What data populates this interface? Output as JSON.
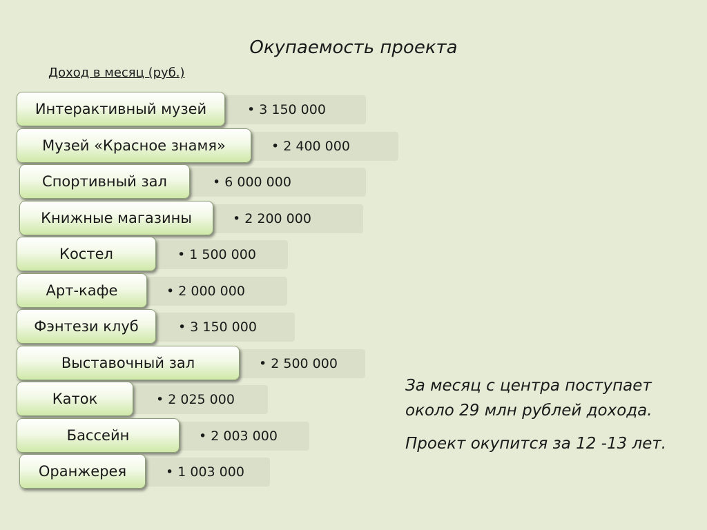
{
  "title": "Окупаемость проекта",
  "subtitle": "Доход в месяц (руб.)",
  "rows": [
    {
      "label": "Интерактивный музей",
      "value": "• 3 150 000"
    },
    {
      "label": "Музей «Красное знамя»",
      "value": "• 2 400 000"
    },
    {
      "label": "Спортивный зал",
      "value": "• 6 000 000"
    },
    {
      "label": "Книжные магазины",
      "value": "• 2 200 000"
    },
    {
      "label": "Костел",
      "value": "• 1 500 000"
    },
    {
      "label": "Арт-кафе",
      "value": "• 2 000 000"
    },
    {
      "label": "Фэнтези клуб",
      "value": "• 3 150 000"
    },
    {
      "label": "Выставочный зал",
      "value": "• 2 500 000"
    },
    {
      "label": "Каток",
      "value": "• 2 025 000"
    },
    {
      "label": "Бассейн",
      "value": "• 2 003 000"
    },
    {
      "label": "Оранжерея",
      "value": "• 1 003 000"
    }
  ],
  "conclusion": {
    "line1": "За месяц с центра поступает около 29 млн рублей дохода.",
    "line2": "Проект окупится за 12 -13 лет."
  }
}
